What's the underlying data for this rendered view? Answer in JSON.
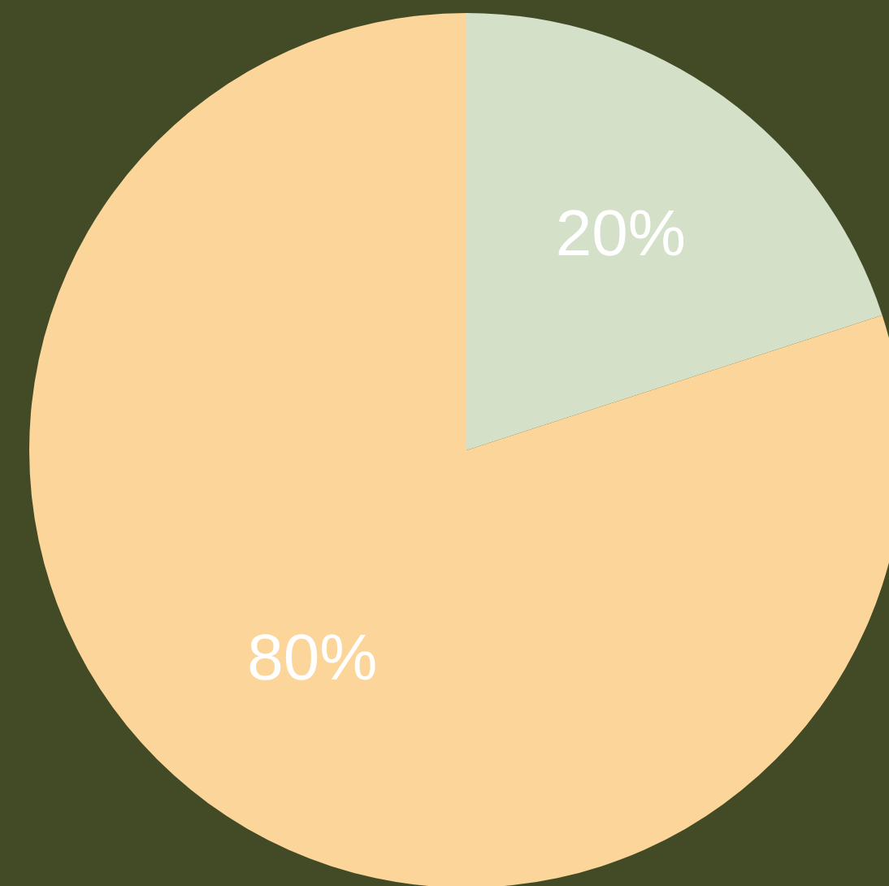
{
  "chart_data": {
    "type": "pie",
    "categories": [
      null,
      null
    ],
    "values": [
      20,
      80
    ],
    "colors": [
      "#d5e0c9",
      "#fcd59a"
    ],
    "value_labels": [
      "20%",
      "80%"
    ]
  }
}
